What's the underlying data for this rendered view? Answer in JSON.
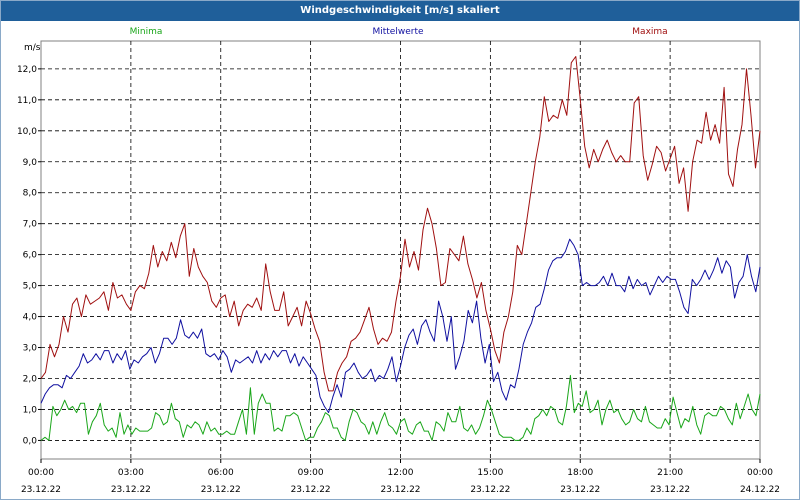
{
  "window": {
    "title": "Windgeschwindigkeit [m/s] skaliert"
  },
  "chart_data": {
    "type": "line",
    "title": "Windgeschwindigkeit [m/s] skaliert",
    "ylabel": "m/s",
    "xlabel": "",
    "ylim": [
      -0.6,
      12.9
    ],
    "xlim": [
      0,
      24
    ],
    "grid": true,
    "legend_position": "top",
    "y_ticks": [
      "0,0",
      "1,0",
      "2,0",
      "3,0",
      "4,0",
      "5,0",
      "6,0",
      "7,0",
      "8,0",
      "9,0",
      "10,0",
      "11,0",
      "12,0"
    ],
    "x_ticks": [
      {
        "time": "00:00",
        "date": "23.12.22"
      },
      {
        "time": "03:00",
        "date": "23.12.22"
      },
      {
        "time": "06:00",
        "date": "23.12.22"
      },
      {
        "time": "09:00",
        "date": "23.12.22"
      },
      {
        "time": "12:00",
        "date": "23.12.22"
      },
      {
        "time": "15:00",
        "date": "23.12.22"
      },
      {
        "time": "18:00",
        "date": "23.12.22"
      },
      {
        "time": "21:00",
        "date": "23.12.22"
      },
      {
        "time": "00:00",
        "date": "24.12.22"
      }
    ],
    "series": [
      {
        "name": "Minima",
        "color": "#1aa61a",
        "values": [
          0.0,
          0.1,
          0.0,
          1.1,
          0.8,
          1.0,
          1.3,
          1.0,
          1.1,
          0.9,
          1.2,
          1.2,
          0.2,
          0.6,
          0.8,
          1.2,
          0.5,
          0.3,
          0.4,
          0.1,
          0.9,
          0.2,
          0.5,
          0.2,
          0.4,
          0.3,
          0.3,
          0.3,
          0.4,
          0.9,
          0.8,
          0.5,
          0.6,
          1.2,
          0.7,
          0.6,
          0.1,
          0.5,
          0.4,
          0.6,
          0.5,
          0.2,
          0.6,
          0.3,
          0.4,
          0.2,
          0.2,
          0.3,
          0.2,
          0.2,
          0.6,
          1.0,
          0.2,
          1.7,
          0.2,
          1.2,
          1.5,
          1.2,
          1.2,
          0.3,
          0.4,
          0.3,
          0.8,
          0.8,
          0.9,
          0.8,
          0.4,
          0.0,
          0.1,
          0.1,
          0.4,
          0.6,
          0.9,
          0.8,
          0.4,
          0.4,
          0.1,
          0.0,
          0.6,
          1.0,
          0.9,
          0.6,
          0.5,
          0.2,
          0.6,
          0.2,
          0.6,
          0.9,
          0.5,
          0.4,
          0.2,
          0.6,
          0.7,
          0.3,
          0.2,
          0.5,
          0.6,
          0.3,
          0.3,
          0.0,
          0.6,
          0.5,
          0.3,
          0.9,
          0.6,
          0.6,
          1.1,
          0.4,
          0.3,
          0.5,
          0.2,
          0.4,
          0.8,
          1.3,
          1.0,
          0.6,
          0.2,
          0.1,
          0.1,
          0.1,
          0.0,
          0.0,
          0.1,
          0.4,
          0.2,
          0.7,
          0.8,
          1.0,
          0.8,
          1.1,
          1.0,
          0.6,
          0.5,
          1.1,
          2.1,
          0.9,
          1.2,
          1.1,
          1.6,
          0.9,
          1.0,
          1.3,
          0.5,
          1.0,
          1.3,
          0.9,
          1.0,
          0.7,
          0.5,
          0.6,
          1.0,
          0.7,
          0.6,
          1.1,
          0.6,
          0.5,
          0.4,
          0.4,
          0.7,
          0.5,
          1.4,
          0.9,
          0.4,
          0.7,
          0.6,
          1.1,
          0.5,
          0.2,
          0.8,
          0.9,
          0.8,
          0.8,
          1.1,
          1.0,
          0.7,
          0.5,
          1.2,
          0.7,
          1.1,
          1.5,
          1.0,
          0.8,
          1.5
        ]
      },
      {
        "name": "Mittelwerte",
        "color": "#1010a0",
        "values": [
          1.2,
          1.5,
          1.7,
          1.8,
          1.8,
          1.7,
          2.1,
          2.0,
          2.2,
          2.4,
          2.8,
          2.5,
          2.6,
          2.8,
          2.6,
          2.9,
          2.9,
          2.5,
          2.8,
          2.6,
          2.9,
          2.3,
          2.6,
          2.5,
          2.7,
          2.8,
          3.0,
          2.5,
          2.8,
          3.3,
          3.3,
          3.1,
          3.3,
          3.9,
          3.4,
          3.3,
          3.5,
          3.3,
          3.6,
          2.8,
          2.7,
          2.8,
          2.6,
          2.9,
          2.7,
          2.2,
          2.6,
          2.5,
          2.6,
          2.7,
          2.5,
          2.9,
          2.5,
          2.8,
          2.6,
          2.9,
          2.7,
          2.9,
          2.9,
          2.5,
          2.8,
          2.4,
          2.7,
          2.5,
          2.3,
          2.1,
          1.4,
          1.1,
          0.9,
          1.4,
          1.8,
          1.4,
          2.2,
          2.3,
          2.5,
          2.2,
          2.0,
          2.1,
          2.3,
          1.9,
          2.1,
          2.0,
          2.3,
          2.7,
          1.9,
          2.4,
          3.0,
          3.4,
          3.6,
          3.1,
          3.7,
          3.9,
          3.5,
          3.2,
          4.5,
          4.0,
          3.2,
          4.0,
          2.3,
          2.7,
          3.2,
          4.2,
          3.8,
          4.5,
          3.3,
          2.5,
          3.1,
          1.9,
          2.2,
          1.6,
          1.3,
          1.8,
          1.7,
          2.3,
          3.1,
          3.5,
          3.8,
          4.3,
          4.4,
          4.9,
          5.5,
          5.8,
          5.9,
          5.9,
          6.1,
          6.5,
          6.3,
          6.0,
          5.0,
          5.1,
          5.0,
          5.0,
          5.1,
          5.3,
          5.0,
          5.4,
          5.0,
          5.0,
          4.8,
          5.3,
          4.9,
          5.2,
          5.0,
          5.1,
          4.7,
          5.0,
          5.3,
          5.1,
          5.3,
          5.2,
          5.2,
          4.8,
          4.3,
          4.1,
          5.2,
          5.0,
          5.2,
          5.5,
          5.2,
          5.5,
          5.9,
          5.4,
          5.8,
          5.6,
          4.6,
          5.1,
          5.3,
          6.0,
          5.3,
          4.8,
          5.6
        ]
      },
      {
        "name": "Maxima",
        "color": "#a01010",
        "values": [
          2.0,
          2.2,
          3.1,
          2.7,
          3.1,
          4.0,
          3.5,
          4.4,
          4.6,
          4.0,
          4.7,
          4.4,
          4.5,
          4.6,
          4.8,
          4.2,
          5.1,
          4.6,
          4.7,
          4.4,
          4.2,
          4.8,
          5.0,
          4.9,
          5.4,
          6.3,
          5.6,
          6.1,
          5.8,
          6.4,
          5.9,
          6.6,
          7.0,
          5.3,
          6.2,
          5.6,
          5.3,
          5.1,
          4.5,
          4.3,
          4.6,
          4.7,
          4.0,
          4.5,
          3.7,
          4.2,
          4.4,
          4.3,
          4.6,
          4.2,
          5.7,
          4.8,
          4.2,
          4.2,
          4.8,
          3.7,
          4.0,
          4.3,
          3.7,
          4.5,
          4.1,
          3.6,
          3.2,
          2.2,
          1.6,
          1.6,
          2.2,
          2.5,
          2.7,
          3.2,
          3.3,
          3.5,
          3.9,
          4.3,
          3.6,
          3.1,
          3.3,
          3.2,
          3.5,
          4.5,
          5.3,
          6.5,
          5.6,
          6.1,
          5.5,
          6.8,
          7.5,
          7.0,
          6.2,
          5.0,
          5.1,
          6.2,
          6.0,
          5.8,
          6.6,
          5.7,
          5.2,
          4.6,
          5.1,
          4.2,
          3.6,
          2.9,
          2.5,
          3.5,
          4.0,
          4.8,
          6.3,
          6.0,
          7.0,
          8.0,
          9.0,
          9.8,
          11.1,
          10.3,
          10.5,
          10.4,
          11.0,
          10.5,
          12.2,
          12.4,
          11.0,
          9.5,
          8.8,
          9.4,
          9.0,
          9.4,
          9.7,
          9.3,
          9.0,
          9.2,
          9.0,
          9.0,
          10.9,
          11.1,
          9.2,
          8.4,
          8.9,
          9.5,
          9.3,
          8.7,
          9.1,
          9.5,
          8.3,
          8.8,
          7.4,
          9.0,
          9.7,
          9.6,
          10.6,
          9.7,
          10.2,
          9.6,
          11.4,
          8.6,
          8.2,
          9.4,
          10.2,
          12.0,
          10.5,
          8.8,
          10.0
        ]
      }
    ]
  }
}
